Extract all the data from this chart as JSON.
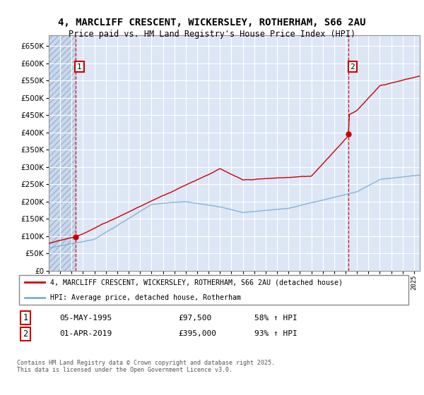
{
  "title_line1": "4, MARCLIFF CRESCENT, WICKERSLEY, ROTHERHAM, S66 2AU",
  "title_line2": "Price paid vs. HM Land Registry's House Price Index (HPI)",
  "ylim": [
    0,
    680000
  ],
  "background_color": "#dce6f5",
  "grid_color": "#ffffff",
  "sale1_t": 1995.333,
  "sale1_price": 97500,
  "sale2_t": 2019.25,
  "sale2_price": 395000,
  "legend_line1": "4, MARCLIFF CRESCENT, WICKERSLEY, ROTHERHAM, S66 2AU (detached house)",
  "legend_line2": "HPI: Average price, detached house, Rotherham",
  "line_color_red": "#cc0000",
  "line_color_blue": "#7aafd4",
  "footnote": "Contains HM Land Registry data © Crown copyright and database right 2025.\nThis data is licensed under the Open Government Licence v3.0.",
  "xstart": 1993,
  "xend": 2025.5
}
